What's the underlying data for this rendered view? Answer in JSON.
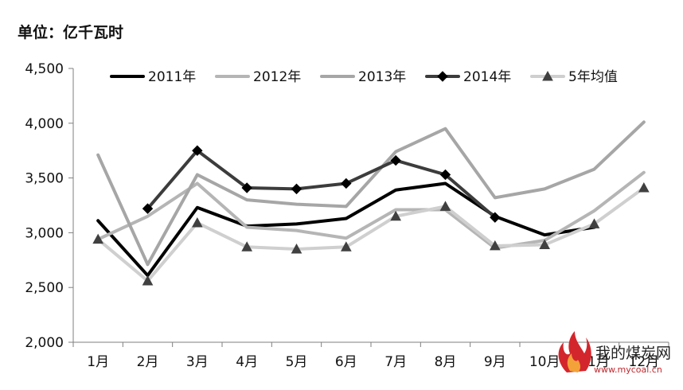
{
  "unit_label": "单位：亿千瓦时",
  "watermark": {
    "name": "我的煤炭网",
    "url": "www.mycoal.cn"
  },
  "chart_data": {
    "type": "line",
    "title": "",
    "xlabel": "",
    "ylabel": "单位：亿千瓦时",
    "categories": [
      "1月",
      "2月",
      "3月",
      "4月",
      "5月",
      "6月",
      "7月",
      "8月",
      "9月",
      "10月",
      "11月",
      "12月"
    ],
    "ylim": [
      2000,
      4500
    ],
    "yticks": [
      2000,
      2500,
      3000,
      3500,
      4000,
      4500
    ],
    "ytick_labels": [
      "2,000",
      "2,500",
      "3,000",
      "3,500",
      "4,000",
      "4,500"
    ],
    "grid": false,
    "legend_position": "top",
    "series": [
      {
        "name": "2011年",
        "color": "#000000",
        "marker": "none",
        "values": [
          3110,
          2610,
          3230,
          3060,
          3080,
          3130,
          3390,
          3450,
          3150,
          2980,
          3050,
          null
        ]
      },
      {
        "name": "2012年",
        "color": "#b5b5b5",
        "marker": "none",
        "values": [
          2940,
          3150,
          3450,
          3050,
          3020,
          2950,
          3210,
          3210,
          2860,
          2930,
          3200,
          3550
        ]
      },
      {
        "name": "2013年",
        "color": "#a6a6a6",
        "marker": "none",
        "values": [
          3710,
          2710,
          3530,
          3300,
          3260,
          3240,
          3740,
          3950,
          3320,
          3400,
          3580,
          4010
        ]
      },
      {
        "name": "2014年",
        "color": "#3c3c3c",
        "marker": "diamond",
        "values": [
          null,
          3220,
          3750,
          3410,
          3400,
          3450,
          3660,
          3530,
          3140,
          null,
          null,
          null
        ]
      },
      {
        "name": "5年均值",
        "color": "#cfcfcf",
        "marker": "triangle",
        "values": [
          2940,
          2560,
          3090,
          2870,
          2850,
          2870,
          3150,
          3240,
          2880,
          2890,
          3080,
          3410
        ]
      }
    ]
  }
}
